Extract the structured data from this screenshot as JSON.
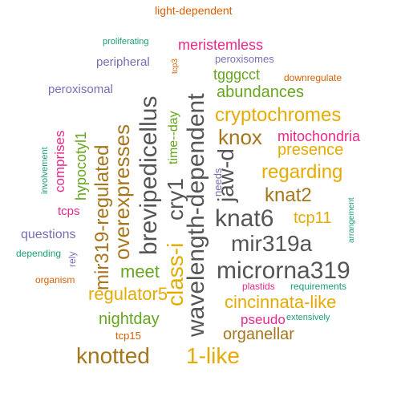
{
  "colors": {
    "pink": "#e7298a",
    "orange": "#d95f02",
    "purple": "#7570b3",
    "teal": "#1b9e77",
    "green": "#66a61e",
    "yellow": "#e6ab02",
    "brown": "#a6761d",
    "gray": "#555555"
  },
  "words": {
    "light_dependent": "light-dependent",
    "proliferating": "proliferating",
    "meristemless": "meristemless",
    "tcp3": "tcp3",
    "peripheral": "peripheral",
    "peroxisomes": "peroxisomes",
    "tgggcct": "tgggcct",
    "downregulate": "downregulate",
    "peroxisomal": "peroxisomal",
    "abundances": "abundances",
    "cryptochromes": "cryptochromes",
    "knox": "knox",
    "mitochondria": "mitochondria",
    "presence": "presence",
    "regarding": "regarding",
    "knat2": "knat2",
    "tcp11": "tcp11",
    "knat6": "knat6",
    "mir319a": "mir319a",
    "microrna319": "microrna319",
    "cincinnata_like": "cincinnata-like",
    "plastids": "plastids",
    "requirements": "requirements",
    "pseudo": "pseudo",
    "extensively": "extensively",
    "organellar": "organellar",
    "nightday": "nightday",
    "tcp15": "tcp15",
    "knotted": "knotted",
    "one_like": "1-like",
    "questions": "questions",
    "depending": "depending",
    "organism": "organism",
    "meet": "meet",
    "regulator5": "regulator5",
    "tcps": "tcps",
    "involvement": "involvement",
    "comprises": "comprises",
    "hypocotyl1": "hypocotyl1",
    "mir319_regulated": "mir319-regulated",
    "overexpresses": "overexpresses",
    "brevipedicellus": "brevipedicellus",
    "class_i": "class-i",
    "cry1": "cry1",
    "time_day": "time--day",
    "wavelength_dependent": "wavelength-dependent",
    "jaw_d": "jaw-d",
    "needs": "needs",
    "rely": "rely",
    "arrangement": "arrangement"
  }
}
